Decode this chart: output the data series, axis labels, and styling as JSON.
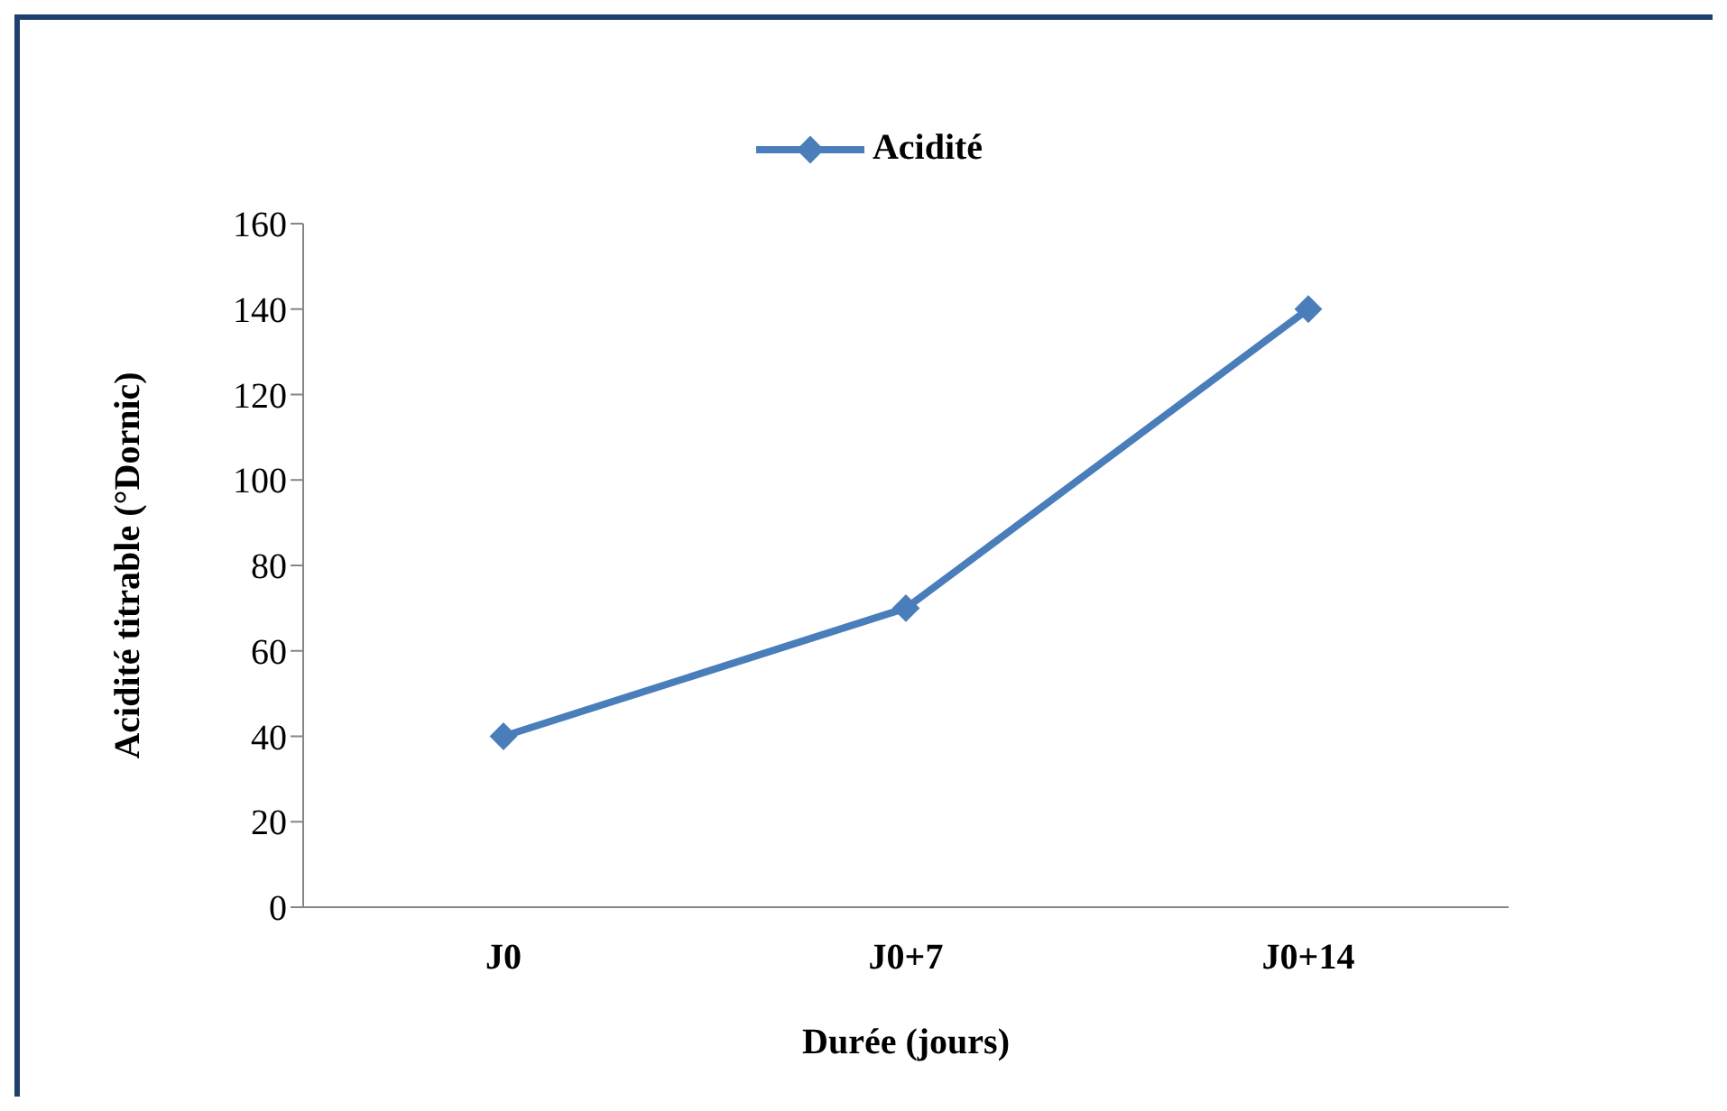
{
  "chart_data": {
    "type": "line",
    "xlabel": "Durée (jours)",
    "ylabel": "Acidité titrable (°Dornic)",
    "categories": [
      "J0",
      "J0+7",
      "J0+14"
    ],
    "series": [
      {
        "name": "Acidité",
        "color": "#4a7ebb",
        "values": [
          40,
          70,
          140
        ]
      }
    ],
    "ylim": [
      0,
      160
    ],
    "yticks": [
      0,
      20,
      40,
      60,
      80,
      100,
      120,
      140,
      160
    ],
    "grid": false,
    "legend": "top",
    "marker": "diamond",
    "line_style": "solid"
  }
}
